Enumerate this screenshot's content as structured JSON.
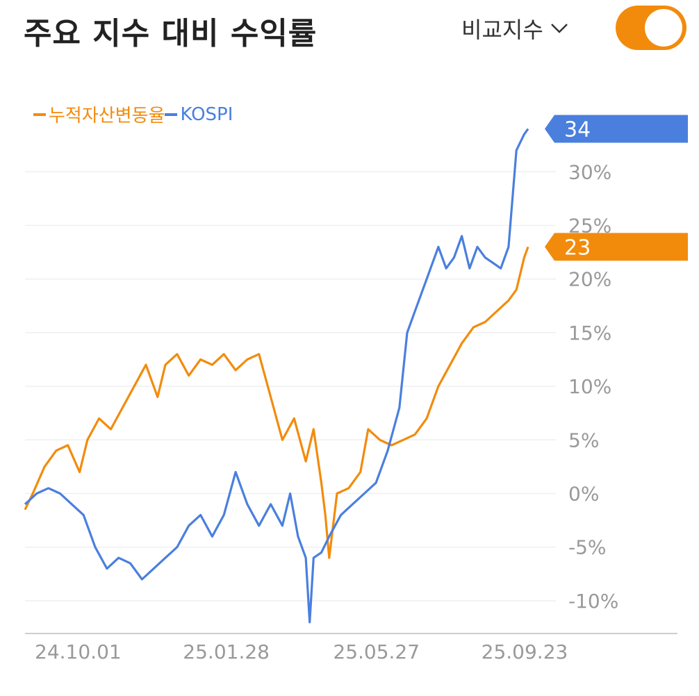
{
  "header": {
    "title": "주요 지수 대비 수익률",
    "compare_label": "비교지수",
    "toggle_on": true
  },
  "colors": {
    "accent": "#f28b0c",
    "kospi": "#4a7fde",
    "grid": "#efefef",
    "axis_text": "#999999"
  },
  "chart_data": {
    "type": "line",
    "ylim": [
      -13,
      36
    ],
    "yticks": [
      30,
      25,
      20,
      15,
      10,
      5,
      0,
      -5,
      -10
    ],
    "ytick_labels": [
      "30%",
      "25%",
      "20%",
      "15%",
      "10%",
      "5%",
      "0%",
      "-5%",
      "-10%"
    ],
    "xlabels": [
      "24.10.01",
      "25.01.28",
      "25.05.27",
      "25.09.23"
    ],
    "x_positions": [
      5,
      81,
      158,
      234
    ],
    "x_count": 259,
    "series": [
      {
        "name": "누적자산변동율",
        "color": "#f28b0c",
        "end_label": "23",
        "points": [
          [
            0,
            -1.5
          ],
          [
            4,
            0
          ],
          [
            10,
            2.5
          ],
          [
            16,
            4
          ],
          [
            22,
            4.5
          ],
          [
            28,
            2
          ],
          [
            32,
            5
          ],
          [
            38,
            7
          ],
          [
            44,
            6
          ],
          [
            50,
            8
          ],
          [
            56,
            10
          ],
          [
            62,
            12
          ],
          [
            68,
            9
          ],
          [
            72,
            12
          ],
          [
            78,
            13
          ],
          [
            84,
            11
          ],
          [
            90,
            12.5
          ],
          [
            96,
            12
          ],
          [
            102,
            13
          ],
          [
            108,
            11.5
          ],
          [
            114,
            12.5
          ],
          [
            120,
            13
          ],
          [
            126,
            9
          ],
          [
            132,
            5
          ],
          [
            138,
            7
          ],
          [
            144,
            3
          ],
          [
            148,
            6
          ],
          [
            152,
            1
          ],
          [
            154,
            -2
          ],
          [
            156,
            -6
          ],
          [
            160,
            0
          ],
          [
            166,
            0.5
          ],
          [
            172,
            2
          ],
          [
            176,
            6
          ],
          [
            182,
            5
          ],
          [
            188,
            4.5
          ],
          [
            194,
            5
          ],
          [
            200,
            5.5
          ],
          [
            206,
            7
          ],
          [
            212,
            10
          ],
          [
            218,
            12
          ],
          [
            224,
            14
          ],
          [
            230,
            15.5
          ],
          [
            236,
            16
          ],
          [
            242,
            17
          ],
          [
            248,
            18
          ],
          [
            252,
            19
          ],
          [
            256,
            22
          ],
          [
            258,
            23
          ]
        ]
      },
      {
        "name": "KOSPI",
        "color": "#4a7fde",
        "end_label": "34",
        "points": [
          [
            0,
            -1
          ],
          [
            6,
            0
          ],
          [
            12,
            0.5
          ],
          [
            18,
            0
          ],
          [
            24,
            -1
          ],
          [
            30,
            -2
          ],
          [
            36,
            -5
          ],
          [
            42,
            -7
          ],
          [
            48,
            -6
          ],
          [
            54,
            -6.5
          ],
          [
            60,
            -8
          ],
          [
            66,
            -7
          ],
          [
            72,
            -6
          ],
          [
            78,
            -5
          ],
          [
            84,
            -3
          ],
          [
            90,
            -2
          ],
          [
            96,
            -4
          ],
          [
            102,
            -2
          ],
          [
            108,
            2
          ],
          [
            114,
            -1
          ],
          [
            120,
            -3
          ],
          [
            126,
            -1
          ],
          [
            132,
            -3
          ],
          [
            136,
            0
          ],
          [
            140,
            -4
          ],
          [
            144,
            -6
          ],
          [
            146,
            -12
          ],
          [
            148,
            -6
          ],
          [
            152,
            -5.5
          ],
          [
            156,
            -4
          ],
          [
            162,
            -2
          ],
          [
            168,
            -1
          ],
          [
            174,
            0
          ],
          [
            180,
            1
          ],
          [
            186,
            4
          ],
          [
            192,
            8
          ],
          [
            196,
            15
          ],
          [
            200,
            17
          ],
          [
            206,
            20
          ],
          [
            212,
            23
          ],
          [
            216,
            21
          ],
          [
            220,
            22
          ],
          [
            224,
            24
          ],
          [
            228,
            21
          ],
          [
            232,
            23
          ],
          [
            236,
            22
          ],
          [
            240,
            21.5
          ],
          [
            244,
            21
          ],
          [
            248,
            23
          ],
          [
            252,
            32
          ],
          [
            256,
            33.5
          ],
          [
            258,
            34
          ]
        ]
      }
    ]
  }
}
